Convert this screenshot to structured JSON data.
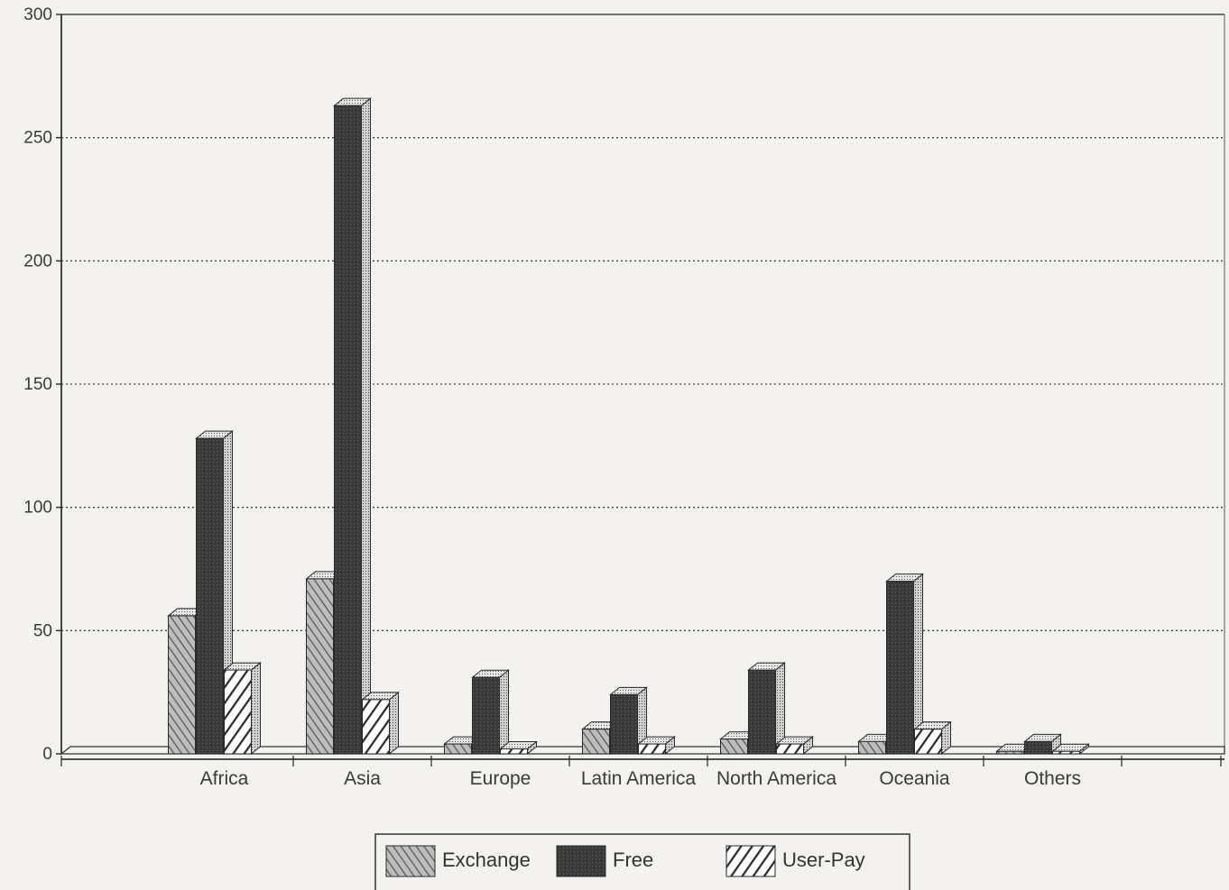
{
  "chart_data": {
    "type": "bar",
    "style": "3d",
    "categories": [
      "Africa",
      "Asia",
      "Europe",
      "Latin America",
      "North America",
      "Oceania",
      "Others"
    ],
    "series": [
      {
        "name": "Exchange",
        "values": [
          56,
          71,
          4,
          10,
          6,
          5,
          1
        ],
        "pattern": "hatch-left",
        "color": "#8a8a8a"
      },
      {
        "name": "Free",
        "values": [
          128,
          263,
          31,
          24,
          34,
          70,
          5
        ],
        "pattern": "solid-dark",
        "color": "#3c3c3c"
      },
      {
        "name": "User-Pay",
        "values": [
          34,
          22,
          2,
          4,
          4,
          10,
          1
        ],
        "pattern": "hatch-right",
        "color": "#ffffff"
      }
    ],
    "ylim": [
      0,
      300
    ],
    "yticks": [
      0,
      50,
      100,
      150,
      200,
      250,
      300
    ],
    "grid": "horizontal-dotted",
    "legend_placement": "bottom-center",
    "title": "",
    "xlabel": "",
    "ylabel": ""
  }
}
